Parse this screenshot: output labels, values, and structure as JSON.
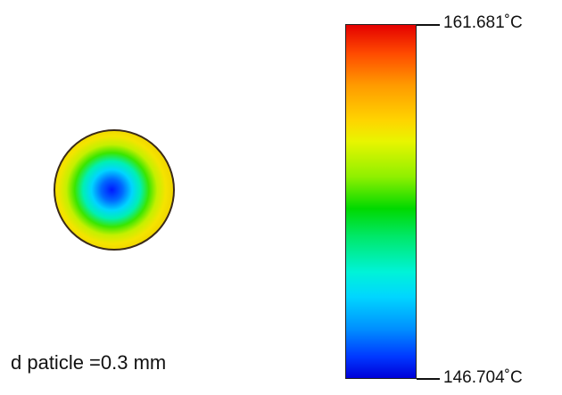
{
  "caption": "d paticle =0.3 mm",
  "colorbar": {
    "max_label": "161.681˚C",
    "min_label": "146.704˚C"
  },
  "colors": {
    "hot": "#e40000",
    "yellow": "#ffd400",
    "green": "#00d900",
    "cyan": "#00f3d8",
    "blue": "#0038ff",
    "cold": "#0000d8",
    "outline": "#3a2a18"
  }
}
